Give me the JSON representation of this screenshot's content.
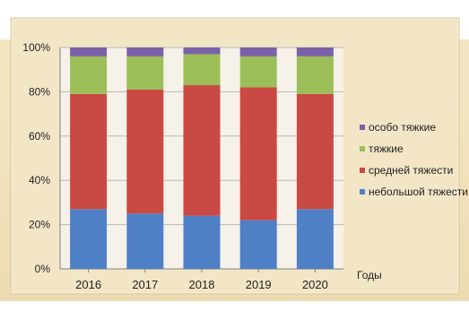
{
  "chart_data": {
    "type": "bar",
    "stacked": true,
    "normalized": true,
    "categories": [
      "2016",
      "2017",
      "2018",
      "2019",
      "2020"
    ],
    "series": [
      {
        "name": "небольшой тяжести",
        "color": "#4f80c5",
        "values": [
          27,
          25,
          24,
          22,
          27
        ]
      },
      {
        "name": "средней тяжести",
        "color": "#c94a44",
        "values": [
          52,
          56,
          59,
          60,
          52
        ]
      },
      {
        "name": "тяжкие",
        "color": "#9cbe58",
        "values": [
          17,
          15,
          14,
          14,
          17
        ]
      },
      {
        "name": "особо тяжкие",
        "color": "#7a61a8",
        "values": [
          4,
          4,
          3,
          4,
          4
        ]
      }
    ],
    "y_ticks": [
      "0%",
      "20%",
      "40%",
      "60%",
      "80%",
      "100%"
    ],
    "ylim": [
      0,
      100
    ],
    "xlabel": "Годы",
    "ylabel": "",
    "title": "",
    "legend_position": "right",
    "grid": true,
    "colors": {
      "background": "#f2e6c6",
      "plot_area": "#f6f1e9",
      "grid": "#b9b9b9",
      "axis": "#808080"
    }
  }
}
